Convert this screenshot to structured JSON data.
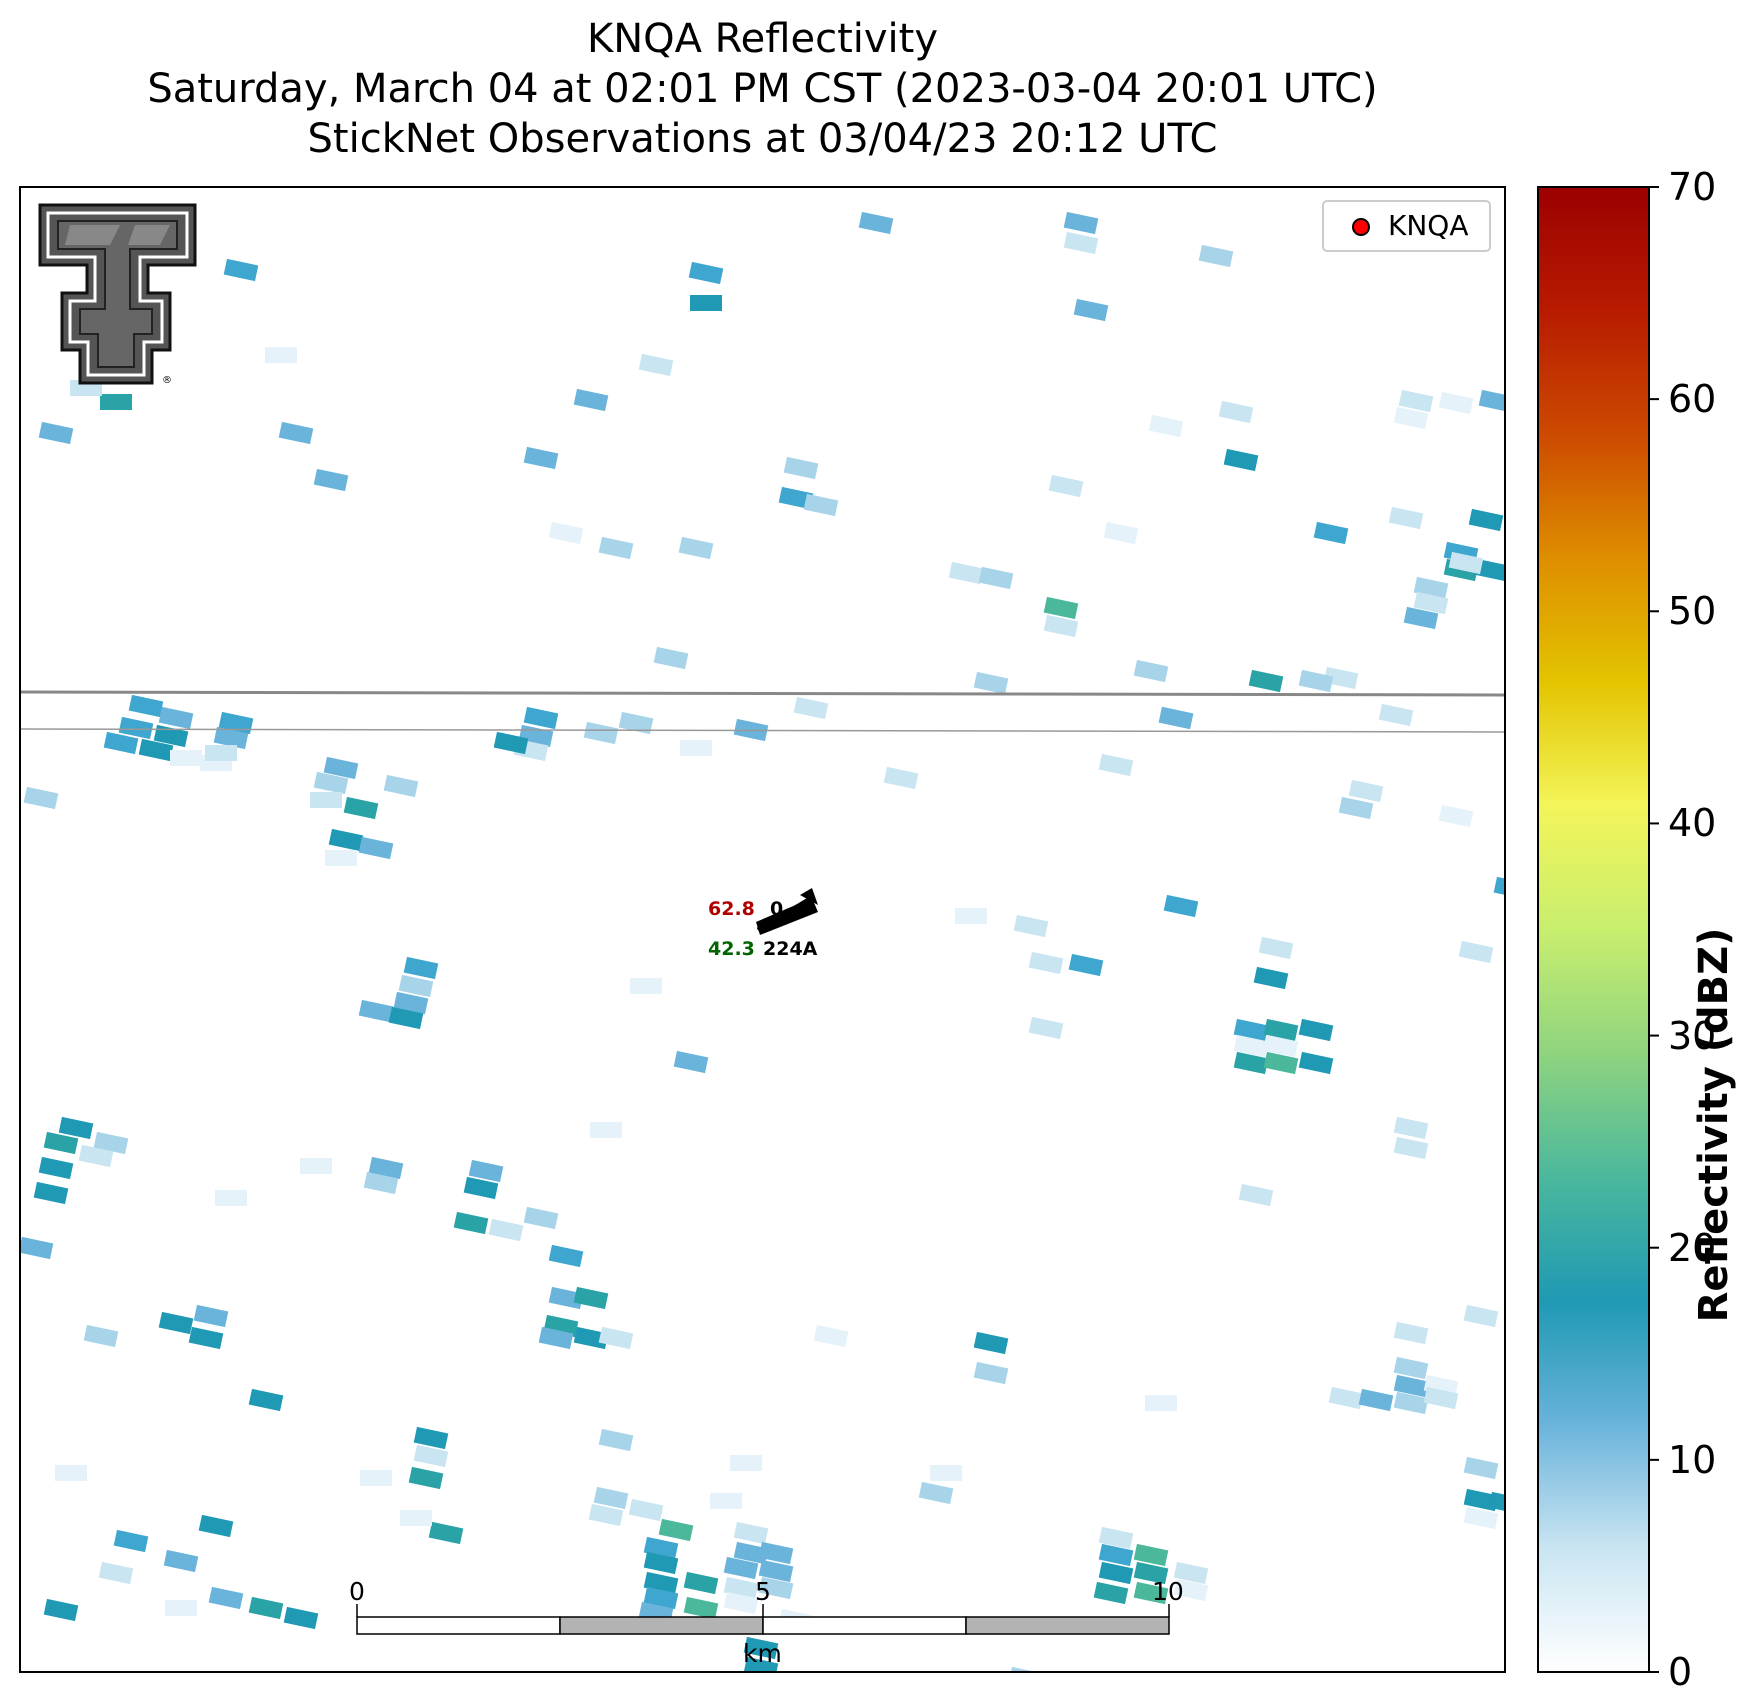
{
  "titles": {
    "line1": "KNQA Reflectivity",
    "line2": "Saturday, March 04 at 02:01 PM CST (2023-03-04 20:01 UTC)",
    "line3": "StickNet Observations at 03/04/23 20:12 UTC"
  },
  "legend": {
    "label": "KNQA",
    "marker_color": "#ff0000"
  },
  "colorbar": {
    "label": "Reflectivity (dBZ)",
    "ticks": [
      "0",
      "10",
      "20",
      "30",
      "40",
      "50",
      "60",
      "70"
    ],
    "min": 0,
    "max": 70,
    "colors": [
      "#ffffff",
      "#c9e5f2",
      "#6ab3db",
      "#1f99b4",
      "#4bb89c",
      "#8fd47f",
      "#c8ee6e",
      "#f3f55a",
      "#e3c400",
      "#de8e00",
      "#cc4a00",
      "#b81b00",
      "#9c0000"
    ]
  },
  "scale_bar": {
    "ticks": [
      "0",
      "5",
      "10"
    ],
    "unit": "km"
  },
  "station": {
    "id": "224A",
    "temperature": "62.8",
    "dewpoint": "42.3",
    "pressure_fragment": "0",
    "temperature_color": "#b00000",
    "dewpoint_color": "#006400"
  },
  "logo": {
    "description_icon": "texas-tech-double-t-logo",
    "mark": "®"
  },
  "chart_data": {
    "type": "heatmap",
    "title": "KNQA Reflectivity",
    "units": "dBZ",
    "range": [
      0,
      70
    ]
  }
}
